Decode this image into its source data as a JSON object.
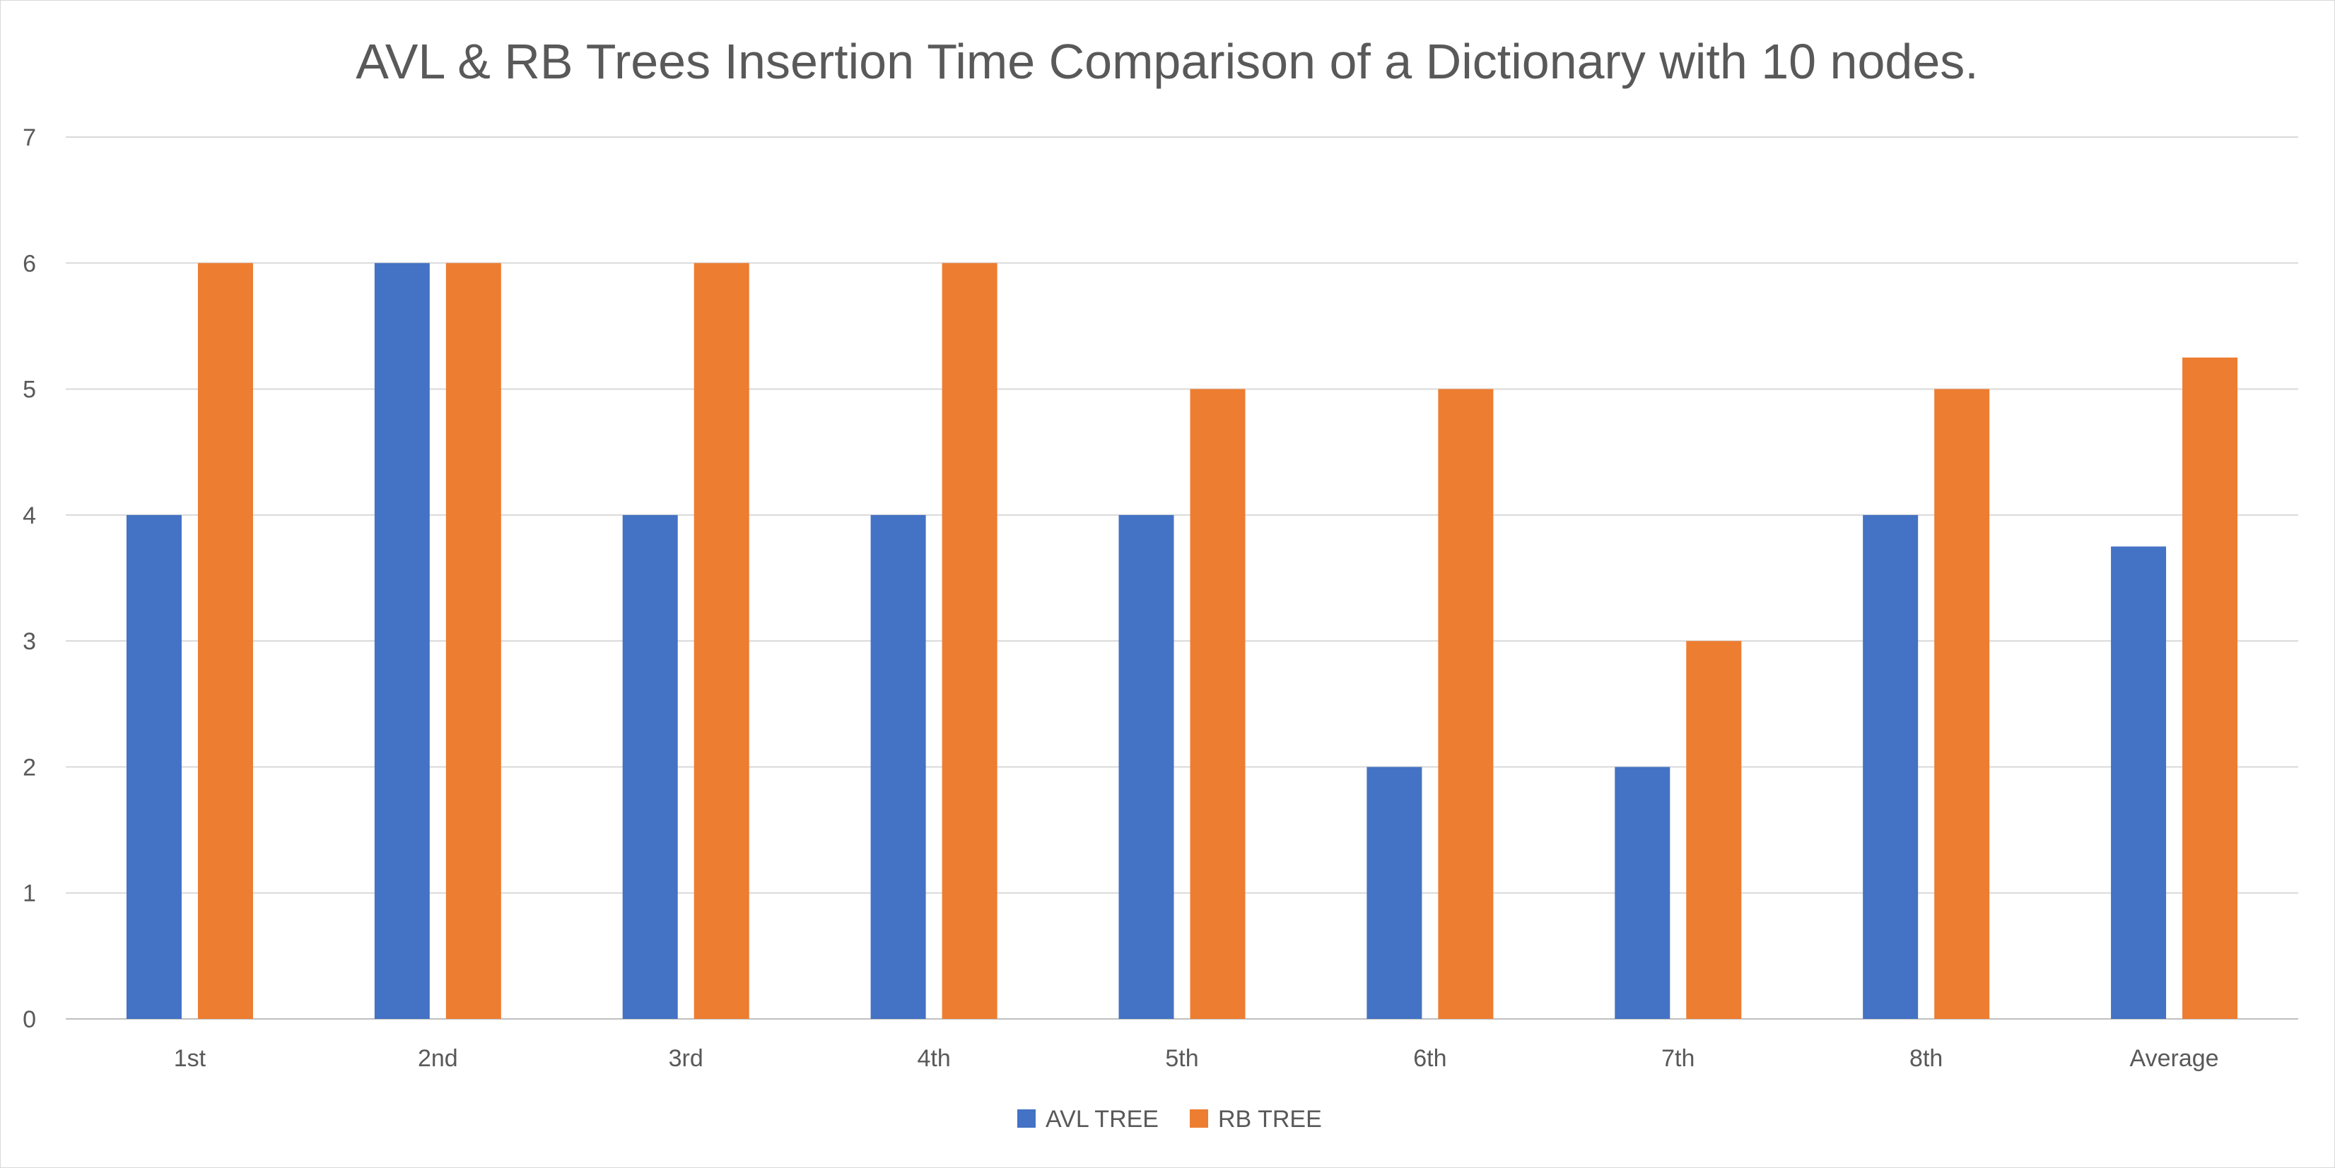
{
  "chart_data": {
    "type": "bar",
    "title": "AVL & RB Trees Insertion Time Comparison of a Dictionary with 10 nodes.",
    "xlabel": "",
    "ylabel": "",
    "categories": [
      "1st",
      "2nd",
      "3rd",
      "4th",
      "5th",
      "6th",
      "7th",
      "8th",
      "Average"
    ],
    "series": [
      {
        "name": "AVL TREE",
        "color": "#4472C4",
        "values": [
          4,
          6,
          4,
          4,
          4,
          2,
          2,
          4,
          3.75
        ]
      },
      {
        "name": "RB TREE",
        "color": "#ED7D31",
        "values": [
          6,
          6,
          6,
          6,
          5,
          5,
          3,
          5,
          5.25
        ]
      }
    ],
    "ylim": [
      0,
      7
    ],
    "yticks": [
      0,
      1,
      2,
      3,
      4,
      5,
      6,
      7
    ],
    "grid": true,
    "legend_position": "bottom"
  }
}
